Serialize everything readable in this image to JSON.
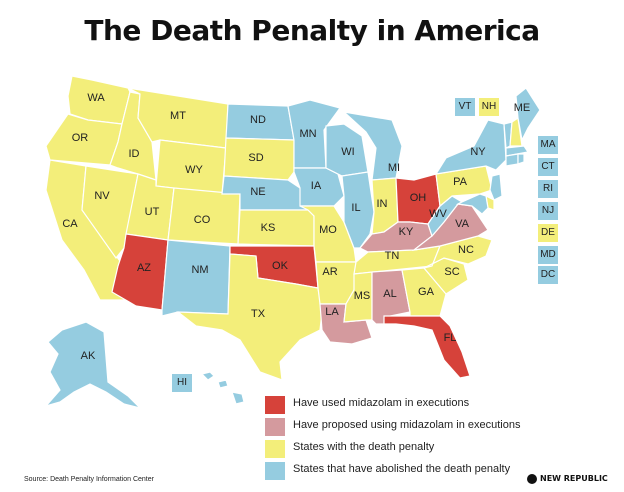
{
  "title": "The Death Penalty in America",
  "colors": {
    "used": "#D6423A",
    "proposed": "#D49A9E",
    "death_penalty": "#F3EE7A",
    "abolished": "#95CCE0"
  },
  "legend": [
    {
      "key": "used",
      "label": "Have used midazolam in executions"
    },
    {
      "key": "proposed",
      "label": "Have proposed using midazolam in executions"
    },
    {
      "key": "death_penalty",
      "label": "States with the death penalty"
    },
    {
      "key": "abolished",
      "label": "States that have abolished the death penalty"
    }
  ],
  "states": {
    "WA": "death_penalty",
    "OR": "death_penalty",
    "CA": "death_penalty",
    "NV": "death_penalty",
    "ID": "death_penalty",
    "MT": "death_penalty",
    "WY": "death_penalty",
    "UT": "death_penalty",
    "CO": "death_penalty",
    "AZ": "used",
    "NM": "abolished",
    "TX": "death_penalty",
    "ND": "abolished",
    "SD": "death_penalty",
    "NE": "abolished",
    "KS": "death_penalty",
    "OK": "used",
    "MN": "abolished",
    "IA": "abolished",
    "MO": "death_penalty",
    "AR": "death_penalty",
    "LA": "proposed",
    "WI": "abolished",
    "IL": "abolished",
    "MI": "abolished",
    "IN": "death_penalty",
    "OH": "used",
    "KY": "proposed",
    "TN": "death_penalty",
    "MS": "death_penalty",
    "AL": "proposed",
    "GA": "death_penalty",
    "FL": "used",
    "SC": "death_penalty",
    "NC": "death_penalty",
    "VA": "proposed",
    "WV": "abolished",
    "PA": "death_penalty",
    "NY": "abolished",
    "ME": "abolished",
    "AK": "abolished",
    "HI": "abolished",
    "VT": "abolished",
    "NH": "death_penalty",
    "MA": "abolished",
    "CT": "abolished",
    "RI": "abolished",
    "NJ": "abolished",
    "DE": "death_penalty",
    "MD": "abolished",
    "DC": "abolished"
  },
  "source": "Source: Death Penalty Information Center",
  "brand": "NEW REPUBLIC"
}
